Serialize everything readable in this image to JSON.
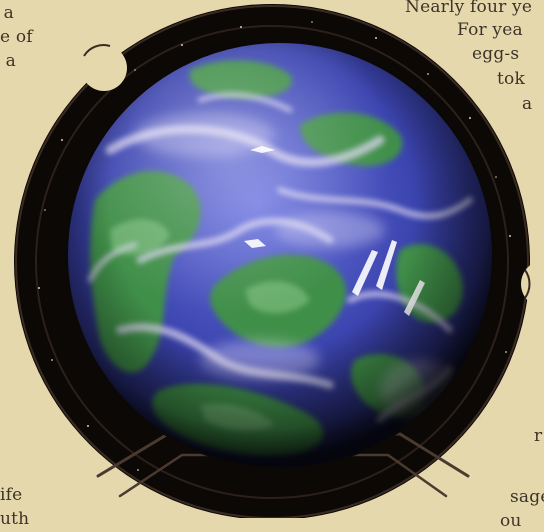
{
  "image": {
    "subject": "planet-globe",
    "colors": {
      "page_background": "#e5d8ad",
      "frame": "#0b0806",
      "frame_rim": "#3a2b22",
      "ocean": "#3c45b0",
      "land": "#3f8f4a",
      "cloud": "#dcd6f0",
      "text": "#3c3427"
    }
  },
  "text_fragments": {
    "left": [
      "a",
      "e of",
      "a",
      "ife",
      "uth"
    ],
    "right": [
      "Nearly four ye",
      "For yea",
      "egg-s",
      "tok",
      "a",
      "r",
      "sage",
      "ou"
    ]
  }
}
